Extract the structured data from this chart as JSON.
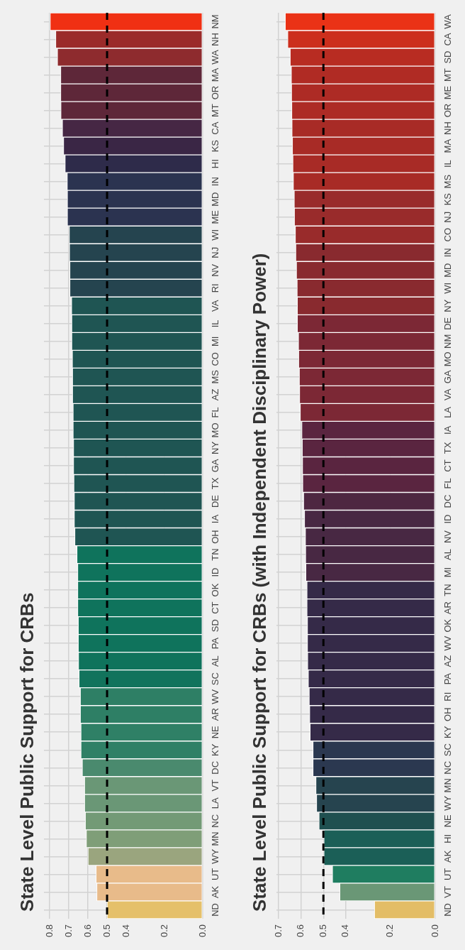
{
  "chart_data": [
    {
      "type": "bar",
      "orientation": "horizontal",
      "title": "State Level Public Support for CRBs",
      "categories": [
        "NM",
        "NH",
        "WA",
        "MA",
        "OR",
        "MT",
        "CA",
        "KS",
        "HI",
        "IN",
        "MD",
        "ME",
        "WI",
        "NJ",
        "NV",
        "RI",
        "VA",
        "IL",
        "MI",
        "CO",
        "MS",
        "AZ",
        "FL",
        "MO",
        "NY",
        "GA",
        "TX",
        "DE",
        "IA",
        "OH",
        "TN",
        "ID",
        "OK",
        "CT",
        "SD",
        "PA",
        "AL",
        "SC",
        "WV",
        "AR",
        "NE",
        "KY",
        "DC",
        "VT",
        "LA",
        "NC",
        "MN",
        "WY",
        "UT",
        "AK",
        "ND"
      ],
      "values": [
        0.798,
        0.769,
        0.76,
        0.743,
        0.743,
        0.742,
        0.734,
        0.728,
        0.72,
        0.709,
        0.708,
        0.708,
        0.698,
        0.697,
        0.695,
        0.695,
        0.686,
        0.685,
        0.685,
        0.682,
        0.681,
        0.681,
        0.678,
        0.678,
        0.676,
        0.676,
        0.674,
        0.672,
        0.672,
        0.669,
        0.658,
        0.654,
        0.654,
        0.654,
        0.651,
        0.651,
        0.65,
        0.647,
        0.64,
        0.64,
        0.637,
        0.637,
        0.63,
        0.618,
        0.618,
        0.614,
        0.609,
        0.6,
        0.558,
        0.554,
        0.5
      ],
      "colors": [
        "#f03013",
        "#9b2b2a",
        "#8e2b2e",
        "#5e2739",
        "#5e2739",
        "#5e2739",
        "#462744",
        "#3a2645",
        "#2e2b4a",
        "#2b3350",
        "#2b3350",
        "#2b3350",
        "#25444f",
        "#25444f",
        "#25444f",
        "#25444f",
        "#1f5553",
        "#1f5553",
        "#1f5553",
        "#1f5553",
        "#1f5553",
        "#1f5553",
        "#1f5553",
        "#1f5553",
        "#1f5553",
        "#1f5553",
        "#1f5553",
        "#1f5553",
        "#1f5553",
        "#1f5553",
        "#0f735c",
        "#0f735c",
        "#0f735c",
        "#0f735c",
        "#0f735c",
        "#0f735c",
        "#0f735c",
        "#12735c",
        "#2e7f65",
        "#2e7f65",
        "#2f8066",
        "#2f8066",
        "#4a8a6e",
        "#6a9776",
        "#6a9776",
        "#739a76",
        "#7f9e78",
        "#9aa57e",
        "#e8bb8a",
        "#e8bb8a",
        "#e5c06a"
      ],
      "xlim": [
        0.83,
        0
      ],
      "xticks": [
        0.8,
        0.7,
        0.6,
        0.5,
        0.4,
        0.2,
        {
          "value": 0,
          "label": "0.0"
        }
      ],
      "grid": true,
      "ref_lines": [
        {
          "axis": "x",
          "value": 0.5,
          "color": "#000000",
          "line_style": "dashed"
        }
      ]
    },
    {
      "type": "bar",
      "orientation": "horizontal",
      "title": "State Level Public Support for CRBs (with Independent Disciplinary Power)",
      "categories": [
        "WA",
        "CA",
        "SD",
        "MT",
        "ME",
        "OR",
        "NH",
        "MA",
        "IL",
        "MS",
        "KS",
        "NJ",
        "CO",
        "IN",
        "MD",
        "WI",
        "NY",
        "DE",
        "NM",
        "MO",
        "GA",
        "VA",
        "LA",
        "IA",
        "TX",
        "CT",
        "FL",
        "DC",
        "ID",
        "NV",
        "AL",
        "MI",
        "TN",
        "AR",
        "OK",
        "WV",
        "AZ",
        "PA",
        "RI",
        "OH",
        "KY",
        "SC",
        "NC",
        "MN",
        "WY",
        "NE",
        "HI",
        "AK",
        "UT",
        "VT",
        "ND"
      ],
      "values": [
        0.671,
        0.66,
        0.649,
        0.644,
        0.643,
        0.642,
        0.641,
        0.639,
        0.637,
        0.635,
        0.631,
        0.63,
        0.626,
        0.624,
        0.621,
        0.618,
        0.617,
        0.617,
        0.612,
        0.611,
        0.608,
        0.607,
        0.604,
        0.597,
        0.595,
        0.594,
        0.593,
        0.589,
        0.585,
        0.581,
        0.58,
        0.579,
        0.574,
        0.574,
        0.572,
        0.572,
        0.571,
        0.568,
        0.564,
        0.562,
        0.56,
        0.547,
        0.547,
        0.534,
        0.531,
        0.52,
        0.498,
        0.498,
        0.46,
        0.427,
        0.272
      ],
      "colors": [
        "#ea3216",
        "#cc2f1d",
        "#b82c22",
        "#b02b24",
        "#ad2b25",
        "#ad2b25",
        "#a82b26",
        "#a82b26",
        "#a82b26",
        "#a82b26",
        "#992b2b",
        "#992b2b",
        "#992b2b",
        "#892a2f",
        "#892a2f",
        "#892a2f",
        "#892a2f",
        "#7c2835",
        "#7c2835",
        "#7c2835",
        "#7c2835",
        "#7c2835",
        "#7c2835",
        "#5a2540",
        "#5a2540",
        "#5a2540",
        "#5a2540",
        "#4e2741",
        "#482843",
        "#482843",
        "#482843",
        "#482843",
        "#352a48",
        "#352a48",
        "#352a48",
        "#352a48",
        "#352a48",
        "#352a48",
        "#352a48",
        "#352a48",
        "#352a48",
        "#2b3850",
        "#2b3850",
        "#26444f",
        "#26444f",
        "#1f5050",
        "#1b5f57",
        "#1b5f57",
        "#1f7d60",
        "#6a9776",
        "#e3bd66"
      ],
      "xlim": [
        0.71,
        0
      ],
      "xticks": [
        0.7,
        0.6,
        0.5,
        0.4,
        0.2,
        {
          "value": 0,
          "label": "0.0"
        }
      ],
      "grid": true,
      "ref_lines": [
        {
          "axis": "x",
          "value": 0.5,
          "color": "#000000",
          "line_style": "dashed"
        }
      ]
    }
  ]
}
